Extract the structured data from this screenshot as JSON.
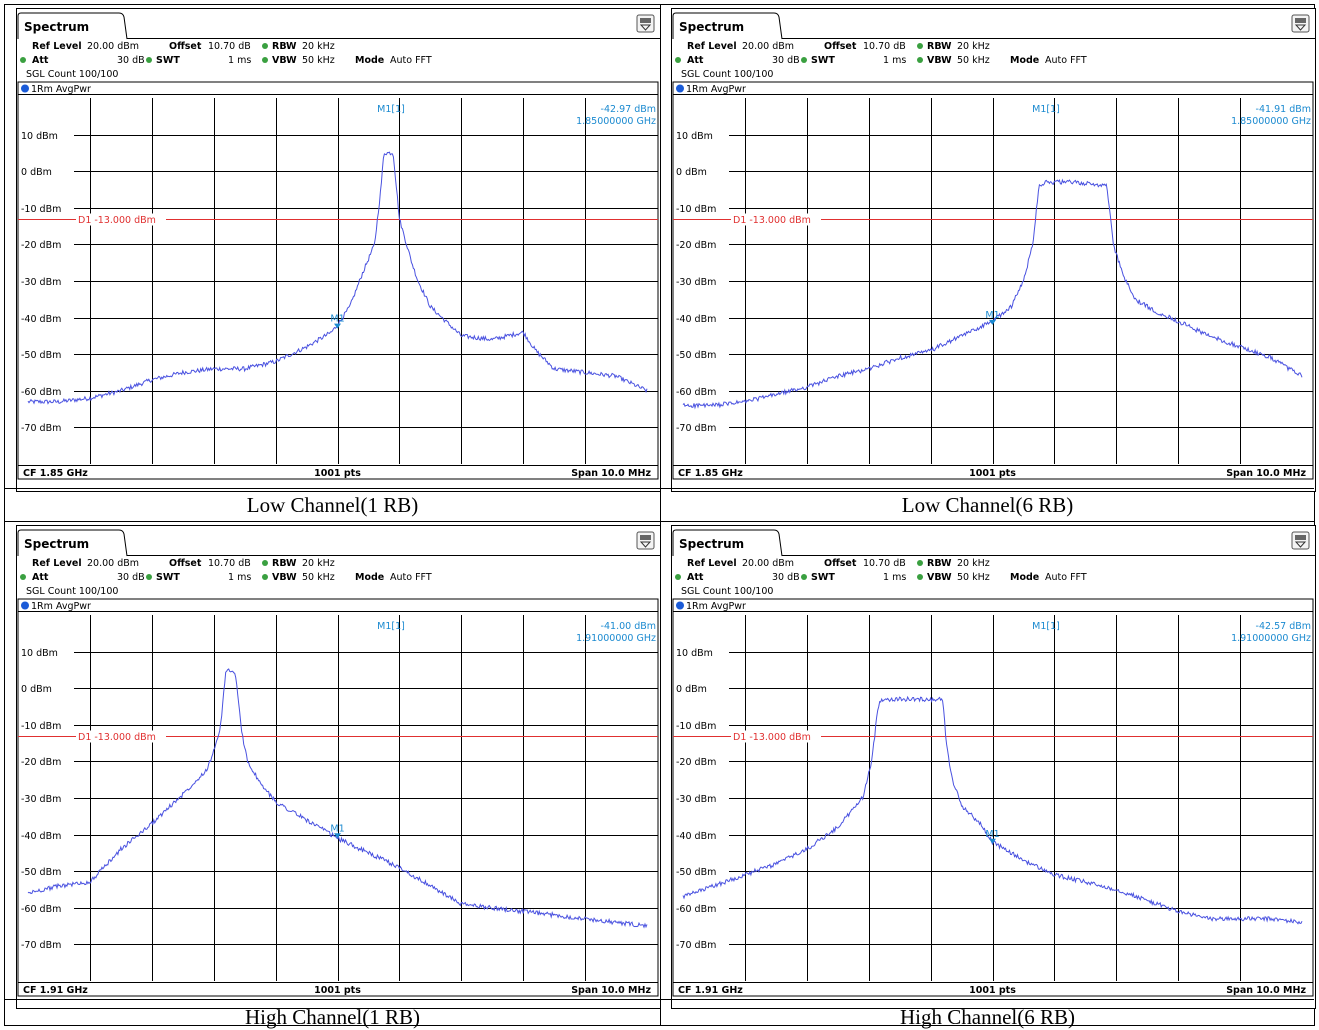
{
  "colors": {
    "trace": "#4a52e0",
    "marker": "#1b8ad0",
    "limit_line": "#e03030",
    "limit_text": "#e03030",
    "grid": "#000000",
    "status_dot": "#3aa040",
    "trace_dot": "#1a5bd8"
  },
  "icons": [
    "instrument-settings-icon",
    "status-dot-icon",
    "trace-indicator-icon",
    "marker-triangle-icon"
  ],
  "chart_data": [
    {
      "type": "line",
      "caption": "Low Channel(1 RB)",
      "tab": "Spectrum",
      "settings": {
        "ref_level_label": "Ref Level",
        "ref_level_value": "20.00 dBm",
        "offset_label": "Offset",
        "offset_value": "10.70 dB",
        "rbw_label": "RBW",
        "rbw_value": "20 kHz",
        "att_label": "Att",
        "att_value": "30 dB",
        "swt_label": "SWT",
        "swt_value": "1 ms",
        "vbw_label": "VBW",
        "vbw_value": "50 kHz",
        "mode_label": "Mode",
        "mode_value": "Auto FFT",
        "sgl_count": "SGL Count 100/100"
      },
      "trace_label": "1Rm AvgPwr",
      "marker": {
        "name": "M1",
        "readout_label": "M1[1]",
        "level": "-42.97 dBm",
        "freq": "1.85000000 GHz"
      },
      "limit_line": {
        "label": "D1  -13.000 dBm",
        "value": -13
      },
      "y_ticks": [
        "10 dBm",
        "0 dBm",
        "-10 dBm",
        "-20 dBm",
        "-30 dBm",
        "-40 dBm",
        "-50 dBm",
        "-60 dBm",
        "-70 dBm"
      ],
      "ylim": [
        -80,
        20
      ],
      "footer": {
        "left": "CF 1.85 GHz",
        "center": "1001 pts",
        "right": "Span 10.0 MHz"
      },
      "x": [
        0,
        0.5,
        1,
        1.5,
        2,
        2.5,
        3,
        3.5,
        4,
        4.5,
        4.9,
        5,
        5.2,
        5.4,
        5.6,
        5.7,
        5.75,
        5.9,
        6.0,
        6.15,
        6.2,
        6.3,
        6.5,
        7,
        7.5,
        8,
        8.2,
        8.5,
        9,
        9.5,
        10
      ],
      "y": [
        -63,
        -63,
        -62,
        -60,
        -57,
        -55,
        -54,
        -54,
        -52,
        -48,
        -44,
        -42,
        -37,
        -28,
        -20,
        -5,
        5,
        5,
        -13,
        -22,
        -25,
        -30,
        -37,
        -45,
        -46,
        -44,
        -49,
        -54,
        -55,
        -56,
        -60
      ],
      "marker_x": 5.0,
      "marker_y": -43
    },
    {
      "type": "line",
      "caption": "Low Channel(6 RB)",
      "tab": "Spectrum",
      "settings": {
        "ref_level_label": "Ref Level",
        "ref_level_value": "20.00 dBm",
        "offset_label": "Offset",
        "offset_value": "10.70 dB",
        "rbw_label": "RBW",
        "rbw_value": "20 kHz",
        "att_label": "Att",
        "att_value": "30 dB",
        "swt_label": "SWT",
        "swt_value": "1 ms",
        "vbw_label": "VBW",
        "vbw_value": "50 kHz",
        "mode_label": "Mode",
        "mode_value": "Auto FFT",
        "sgl_count": "SGL Count 100/100"
      },
      "trace_label": "1Rm AvgPwr",
      "marker": {
        "name": "M1",
        "readout_label": "M1[1]",
        "level": "-41.91 dBm",
        "freq": "1.85000000 GHz"
      },
      "limit_line": {
        "label": "D1  -13.000 dBm",
        "value": -13
      },
      "y_ticks": [
        "10 dBm",
        "0 dBm",
        "-10 dBm",
        "-20 dBm",
        "-30 dBm",
        "-40 dBm",
        "-50 dBm",
        "-60 dBm",
        "-70 dBm"
      ],
      "ylim": [
        -80,
        20
      ],
      "footer": {
        "left": "CF 1.85 GHz",
        "center": "1001 pts",
        "right": "Span 10.0 MHz"
      },
      "x": [
        0,
        0.5,
        1,
        1.5,
        2,
        2.5,
        3,
        3.5,
        4,
        4.5,
        5,
        5.3,
        5.5,
        5.65,
        5.75,
        5.85,
        6.3,
        6.85,
        6.95,
        7.1,
        7.3,
        7.6,
        8,
        8.5,
        9,
        9.5,
        10
      ],
      "y": [
        -64,
        -64,
        -63,
        -61,
        -59,
        -56,
        -54,
        -51,
        -49,
        -45,
        -41,
        -37,
        -30,
        -20,
        -4,
        -3,
        -3,
        -4,
        -20,
        -28,
        -35,
        -38,
        -41,
        -45,
        -48,
        -51,
        -56
      ],
      "marker_x": 5.0,
      "marker_y": -42
    },
    {
      "type": "line",
      "caption": "High Channel(1 RB)",
      "tab": "Spectrum",
      "settings": {
        "ref_level_label": "Ref Level",
        "ref_level_value": "20.00 dBm",
        "offset_label": "Offset",
        "offset_value": "10.70 dB",
        "rbw_label": "RBW",
        "rbw_value": "20 kHz",
        "att_label": "Att",
        "att_value": "30 dB",
        "swt_label": "SWT",
        "swt_value": "1 ms",
        "vbw_label": "VBW",
        "vbw_value": "50 kHz",
        "mode_label": "Mode",
        "mode_value": "Auto FFT",
        "sgl_count": "SGL Count 100/100"
      },
      "trace_label": "1Rm AvgPwr",
      "marker": {
        "name": "M1",
        "readout_label": "M1[1]",
        "level": "-41.00 dBm",
        "freq": "1.91000000 GHz"
      },
      "limit_line": {
        "label": "D1  -13.000 dBm",
        "value": -13
      },
      "y_ticks": [
        "10 dBm",
        "0 dBm",
        "-10 dBm",
        "-20 dBm",
        "-30 dBm",
        "-40 dBm",
        "-50 dBm",
        "-60 dBm",
        "-70 dBm"
      ],
      "ylim": [
        -80,
        20
      ],
      "footer": {
        "left": "CF 1.91 GHz",
        "center": "1001 pts",
        "right": "Span 10.0 MHz"
      },
      "x": [
        0,
        0.5,
        1,
        1.5,
        2,
        2.5,
        2.9,
        3.1,
        3.2,
        3.25,
        3.35,
        3.45,
        3.55,
        3.75,
        4,
        4.5,
        5,
        5.5,
        6,
        6.5,
        7,
        7.5,
        8,
        8.5,
        9,
        9.5,
        10
      ],
      "y": [
        -56,
        -54,
        -53,
        -44,
        -37,
        -29,
        -22,
        -12,
        5,
        5,
        4,
        -12,
        -20,
        -26,
        -31,
        -36,
        -41,
        -45,
        -49,
        -54,
        -59,
        -60,
        -61,
        -62,
        -63,
        -64,
        -65
      ],
      "marker_x": 5.0,
      "marker_y": -41
    },
    {
      "type": "line",
      "caption": "High Channel(6 RB)",
      "tab": "Spectrum",
      "settings": {
        "ref_level_label": "Ref Level",
        "ref_level_value": "20.00 dBm",
        "offset_label": "Offset",
        "offset_value": "10.70 dB",
        "rbw_label": "RBW",
        "rbw_value": "20 kHz",
        "att_label": "Att",
        "att_value": "30 dB",
        "swt_label": "SWT",
        "swt_value": "1 ms",
        "vbw_label": "VBW",
        "vbw_value": "50 kHz",
        "mode_label": "Mode",
        "mode_value": "Auto FFT",
        "sgl_count": "SGL Count 100/100"
      },
      "trace_label": "1Rm AvgPwr",
      "marker": {
        "name": "M1",
        "readout_label": "M1[1]",
        "level": "-42.57 dBm",
        "freq": "1.91000000 GHz"
      },
      "limit_line": {
        "label": "D1  -13.000 dBm",
        "value": -13
      },
      "y_ticks": [
        "10 dBm",
        "0 dBm",
        "-10 dBm",
        "-20 dBm",
        "-30 dBm",
        "-40 dBm",
        "-50 dBm",
        "-60 dBm",
        "-70 dBm"
      ],
      "ylim": [
        -80,
        20
      ],
      "footer": {
        "left": "CF 1.91 GHz",
        "center": "1001 pts",
        "right": "Span 10.0 MHz"
      },
      "x": [
        0,
        0.5,
        1,
        1.5,
        2,
        2.5,
        2.9,
        3.05,
        3.15,
        3.2,
        3.5,
        4.2,
        4.25,
        4.35,
        4.5,
        4.8,
        5,
        5.5,
        6,
        6.5,
        7,
        7.5,
        8,
        8.5,
        9,
        9.5,
        10
      ],
      "y": [
        -57,
        -54,
        -51,
        -48,
        -44,
        -38,
        -30,
        -20,
        -5,
        -3,
        -3,
        -3,
        -15,
        -25,
        -32,
        -37,
        -42,
        -47,
        -51,
        -53,
        -55,
        -58,
        -61,
        -63,
        -63,
        -63,
        -64
      ],
      "marker_x": 5.0,
      "marker_y": -42.5
    }
  ]
}
